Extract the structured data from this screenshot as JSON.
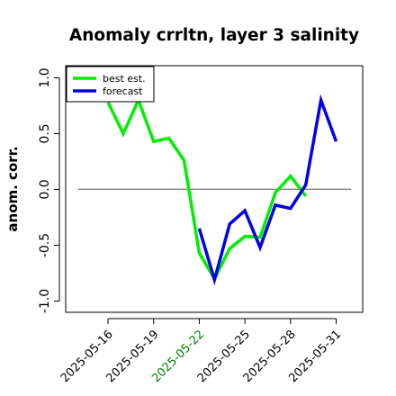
{
  "chart_data": {
    "type": "line",
    "title": "Anomaly crrltn, layer 3 salinity",
    "xlabel": "",
    "ylabel": "anom. corr.",
    "ylim": [
      -1.0,
      1.0
    ],
    "grid": false,
    "legend_position": "top-left",
    "y_ticks": [
      "-1.0",
      "-0.5",
      "0.0",
      "0.5",
      "1.0"
    ],
    "y_tick_values": [
      -1.0,
      -0.5,
      0.0,
      0.5,
      1.0
    ],
    "x_ticks": [
      "2025-05-16",
      "2025-05-19",
      "2025-05-22",
      "2025-05-25",
      "2025-05-28",
      "2025-05-31"
    ],
    "x_tick_colors": [
      "#000000",
      "#000000",
      "#008000",
      "#000000",
      "#000000",
      "#000000"
    ],
    "reference_line": 0.0,
    "series": [
      {
        "name": "best est.",
        "color": "#00ee00",
        "x": [
          "2025-05-16",
          "2025-05-17",
          "2025-05-18",
          "2025-05-19",
          "2025-05-20",
          "2025-05-21",
          "2025-05-22",
          "2025-05-23",
          "2025-05-24",
          "2025-05-25",
          "2025-05-26",
          "2025-05-27",
          "2025-05-28",
          "2025-05-29"
        ],
        "values": [
          0.78,
          0.5,
          0.8,
          0.43,
          0.46,
          0.26,
          -0.57,
          -0.8,
          -0.53,
          -0.42,
          -0.43,
          -0.03,
          0.12,
          -0.06
        ]
      },
      {
        "name": "forecast",
        "color": "#0000ee",
        "x": [
          "2025-05-22",
          "2025-05-23",
          "2025-05-24",
          "2025-05-25",
          "2025-05-26",
          "2025-05-27",
          "2025-05-28",
          "2025-05-29",
          "2025-05-30",
          "2025-05-31"
        ],
        "values": [
          -0.35,
          -0.81,
          -0.31,
          -0.19,
          -0.52,
          -0.14,
          -0.17,
          0.04,
          0.8,
          0.43
        ]
      }
    ]
  }
}
